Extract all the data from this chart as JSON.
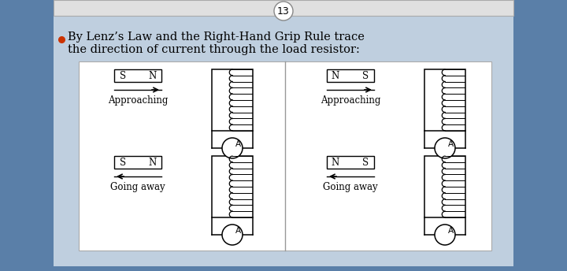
{
  "title_num": "13",
  "bullet_text_line1": "By Lenz’s Law and the Right-Hand Grip Rule trace",
  "bullet_text_line2": "the direction of current through the load resistor:",
  "bg_outer": "#5a7fa8",
  "bg_inner": "#bfcfdf",
  "bg_panel": "#ffffff",
  "bg_top": "#e0e0e0",
  "panels": [
    {
      "magnet_labels": [
        "S",
        "N"
      ],
      "arrow_dir": 1,
      "label": "Approaching"
    },
    {
      "magnet_labels": [
        "N",
        "S"
      ],
      "arrow_dir": 1,
      "label": "Approaching"
    },
    {
      "magnet_labels": [
        "S",
        "N"
      ],
      "arrow_dir": -1,
      "label": "Going away"
    },
    {
      "magnet_labels": [
        "N",
        "S"
      ],
      "arrow_dir": -1,
      "label": "Going away"
    }
  ]
}
